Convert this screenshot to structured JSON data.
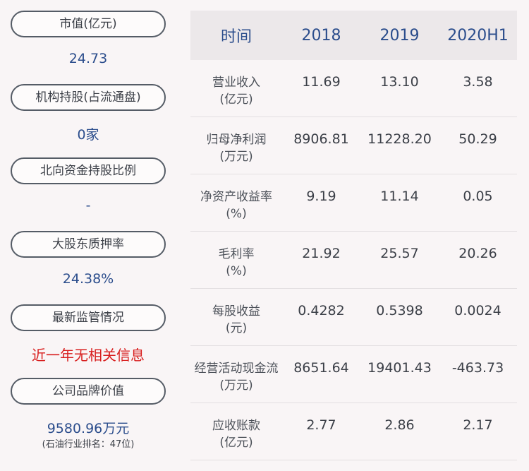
{
  "left": {
    "items": [
      {
        "label": "市值(亿元)",
        "value": "24.73"
      },
      {
        "label": "机构持股(占流通盘)",
        "value": "0家"
      },
      {
        "label": "北向资金持股比例",
        "value": "-"
      },
      {
        "label": "大股东质押率",
        "value": "24.38%"
      },
      {
        "label": "最新监管情况",
        "value": "近一年无相关信息"
      },
      {
        "label": "公司品牌价值",
        "value": "9580.96万元",
        "sub": "(石油行业排名：47位)"
      }
    ],
    "colors": {
      "value": "#2b4d8c",
      "alert": "#d81e1e"
    }
  },
  "table": {
    "headers": [
      "时间",
      "2018",
      "2019",
      "2020H1"
    ],
    "rows": [
      {
        "label1": "营业收入",
        "label2": "(亿元)",
        "values": [
          "11.69",
          "13.10",
          "3.58"
        ]
      },
      {
        "label1": "归母净利润",
        "label2": "(万元)",
        "values": [
          "8906.81",
          "11228.20",
          "50.29"
        ]
      },
      {
        "label1": "净资产收益率",
        "label2": "(%)",
        "values": [
          "9.19",
          "11.14",
          "0.05"
        ]
      },
      {
        "label1": "毛利率",
        "label2": "(%)",
        "values": [
          "21.92",
          "25.57",
          "20.26"
        ]
      },
      {
        "label1": "每股收益",
        "label2": "(元)",
        "values": [
          "0.4282",
          "0.5398",
          "0.0024"
        ]
      },
      {
        "label1": "经营活动现金流",
        "label2": "(万元)",
        "values": [
          "8651.64",
          "19401.43",
          "-463.73"
        ]
      },
      {
        "label1": "应收账款",
        "label2": "(亿元)",
        "values": [
          "2.77",
          "2.86",
          "2.17"
        ]
      }
    ]
  }
}
